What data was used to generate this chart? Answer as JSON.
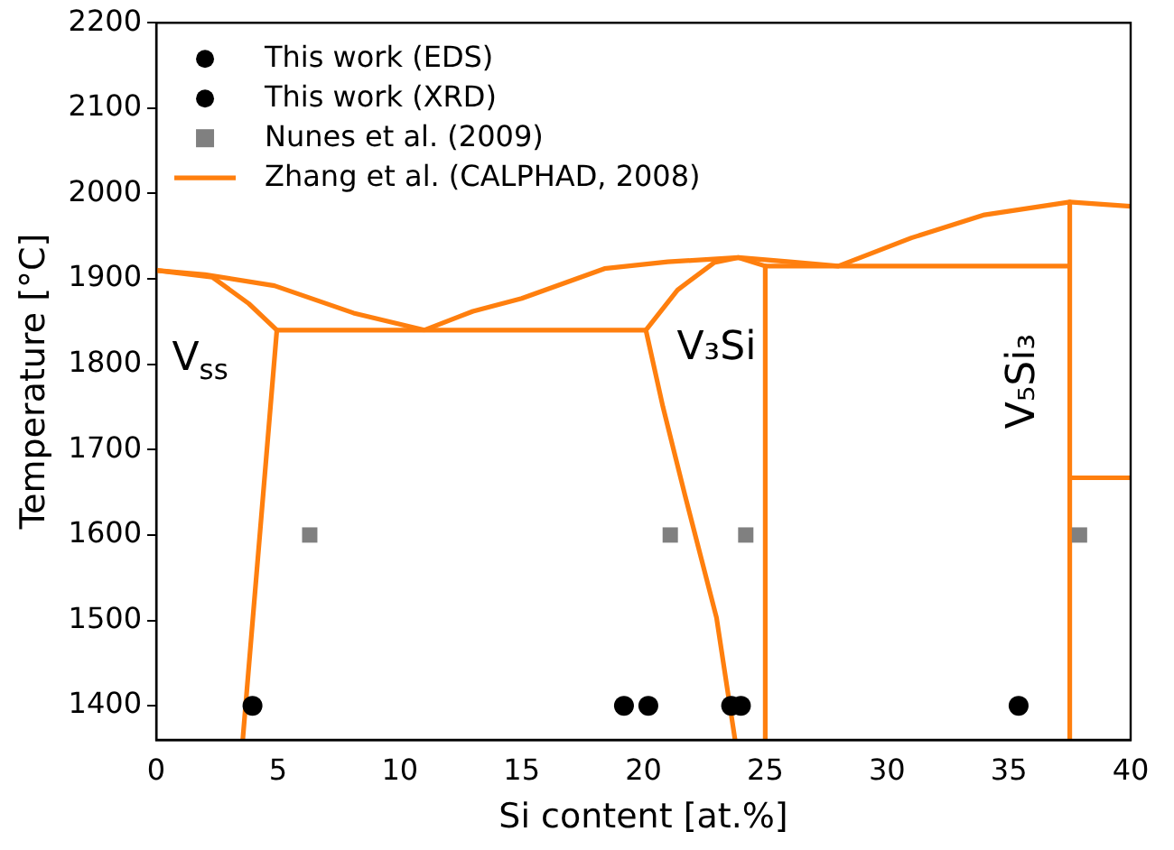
{
  "chart_data": {
    "type": "scatter",
    "xlabel": "Si content [at.%]",
    "ylabel": "Temperature [°C]",
    "xlim": [
      0,
      40
    ],
    "ylim": [
      1360,
      2200
    ],
    "xticks": [
      0,
      5,
      10,
      15,
      20,
      25,
      30,
      35,
      40
    ],
    "yticks": [
      1400,
      1500,
      1600,
      1700,
      1800,
      1900,
      2000,
      2100,
      2200
    ],
    "grid": false,
    "legend": "top left",
    "series": [
      {
        "name": "This work (EDS)",
        "color": "#000000",
        "marker": "circle",
        "x": [
          3.95,
          19.2,
          23.6,
          35.4
        ],
        "values": [
          1400,
          1400,
          1400,
          1400
        ]
      },
      {
        "name": "This work (XRD)",
        "color": "#000000",
        "marker": "circle",
        "x": [
          20.2,
          24.0
        ],
        "values": [
          1400,
          1400
        ]
      },
      {
        "name": "Nunes et al. (2009)",
        "color": "#808080",
        "marker": "square",
        "x": [
          6.3,
          21.1,
          24.2,
          37.9
        ],
        "values": [
          1600,
          1600,
          1600,
          1600
        ]
      },
      {
        "name": "Zhang et al. (CALPHAD, 2008)",
        "type": "line",
        "color": "#ff7f0e",
        "marker": "none",
        "x": [
          0,
          2,
          4.85,
          8.1,
          11
        ],
        "values": [
          1910,
          1905,
          1892,
          1860,
          1840
        ]
      },
      {
        "type": "line",
        "color": "#ff7f0e",
        "marker": "none",
        "x": [
          0,
          2.3,
          3.8,
          4.95
        ],
        "values": [
          1910,
          1902,
          1871,
          1840
        ]
      },
      {
        "type": "line",
        "color": "#ff7f0e",
        "marker": "none",
        "x": [
          3.55,
          4.95,
          20.1
        ],
        "values": [
          1360,
          1840,
          1840
        ]
      },
      {
        "type": "line",
        "color": "#ff7f0e",
        "marker": "none",
        "x": [
          11,
          13,
          15,
          18.4,
          21,
          23.9,
          26,
          28,
          31,
          34,
          37.5,
          40
        ],
        "values": [
          1840,
          1862,
          1877,
          1912,
          1920,
          1925,
          1920,
          1915,
          1948,
          1975,
          1990,
          1985
        ]
      },
      {
        "type": "line",
        "color": "#ff7f0e",
        "marker": "none",
        "x": [
          20.1,
          21.4,
          22.9,
          23.9,
          25,
          25
        ],
        "values": [
          1840,
          1887,
          1919,
          1925,
          1915,
          1360
        ]
      },
      {
        "type": "line",
        "color": "#ff7f0e",
        "marker": "none",
        "x": [
          20.1,
          20.8,
          21.7,
          23.0,
          23.76
        ],
        "values": [
          1840,
          1750,
          1647,
          1503,
          1360
        ]
      },
      {
        "type": "line",
        "color": "#ff7f0e",
        "marker": "none",
        "x": [
          25,
          37.5
        ],
        "values": [
          1915,
          1915
        ]
      },
      {
        "type": "line",
        "color": "#ff7f0e",
        "marker": "none",
        "x": [
          37.5,
          37.5
        ],
        "values": [
          1990,
          1360
        ]
      },
      {
        "type": "line",
        "color": "#ff7f0e",
        "marker": "none",
        "x": [
          37.5,
          40
        ],
        "values": [
          1667,
          1667
        ]
      }
    ],
    "annotations": [
      "V$_{ss}$",
      "V₃Si",
      "V₅Si₃"
    ]
  }
}
